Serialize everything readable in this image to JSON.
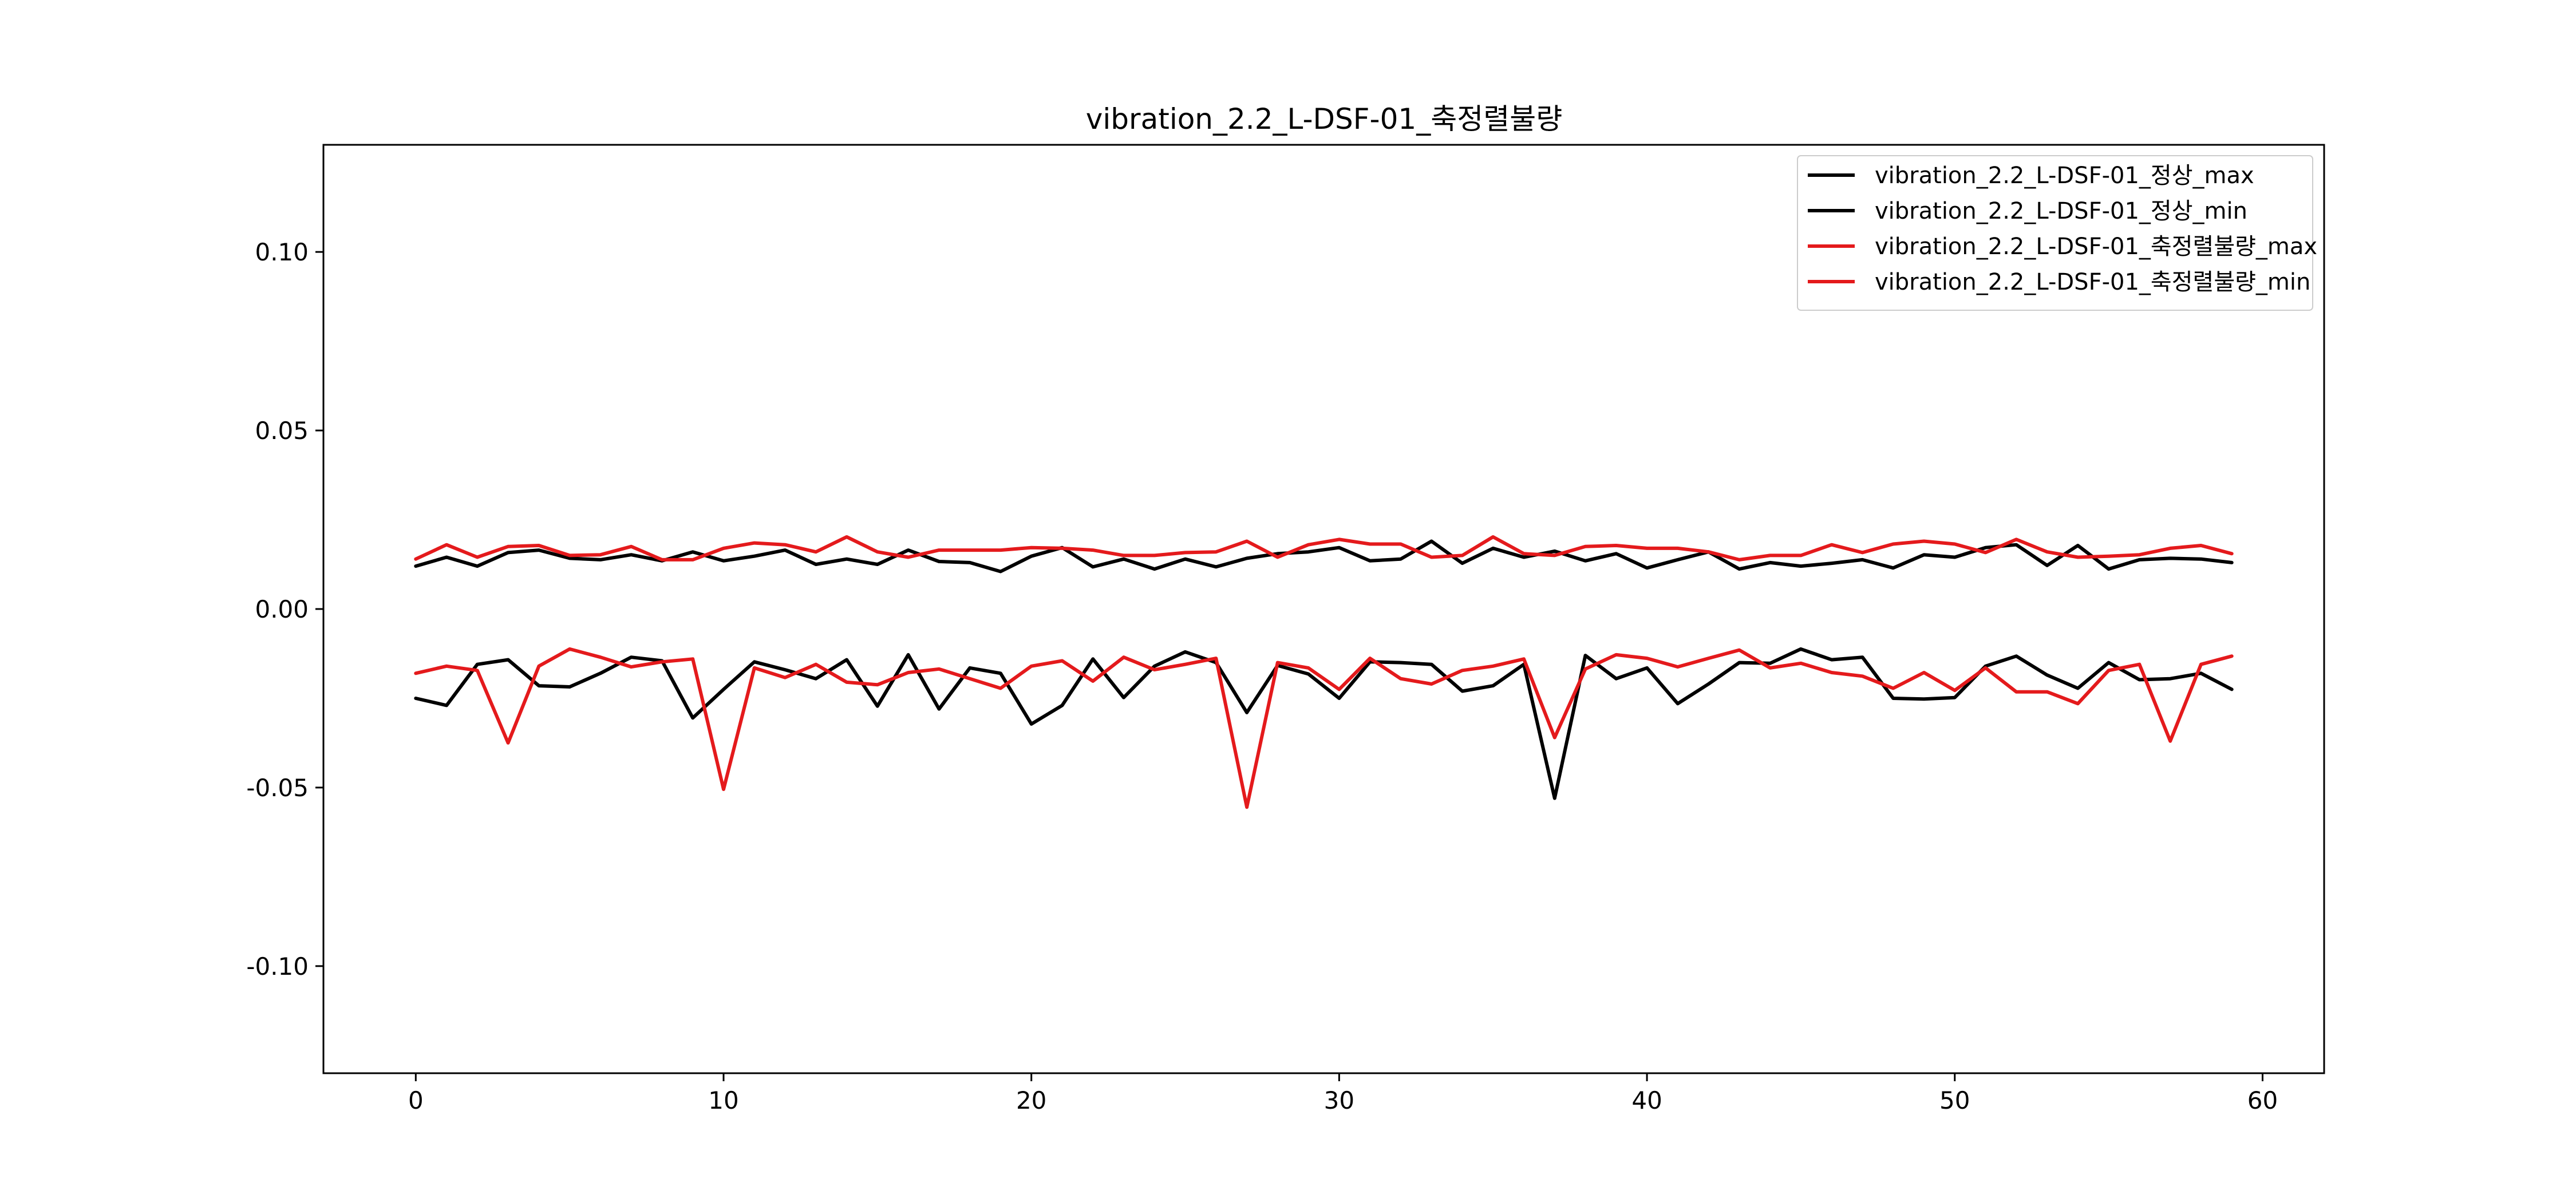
{
  "chart_data": {
    "type": "line",
    "title": "vibration_2.2_L-DSF-01_축정렬불량",
    "xlabel": "",
    "ylabel": "",
    "xlim": [
      -3,
      62
    ],
    "ylim": [
      -0.13,
      0.13
    ],
    "xticks": [
      0,
      10,
      20,
      30,
      40,
      50,
      60
    ],
    "xtick_labels": [
      "0",
      "10",
      "20",
      "30",
      "40",
      "50",
      "60"
    ],
    "yticks": [
      -0.1,
      -0.05,
      0.0,
      0.05,
      0.1
    ],
    "ytick_labels": [
      "-0.10",
      "-0.05",
      "0.00",
      "0.05",
      "0.10"
    ],
    "legend_position": "top-right",
    "x": [
      0,
      1,
      2,
      3,
      4,
      5,
      6,
      7,
      8,
      9,
      10,
      11,
      12,
      13,
      14,
      15,
      16,
      17,
      18,
      19,
      20,
      21,
      22,
      23,
      24,
      25,
      26,
      27,
      28,
      29,
      30,
      31,
      32,
      33,
      34,
      35,
      36,
      37,
      38,
      39,
      40,
      41,
      42,
      43,
      44,
      45,
      46,
      47,
      48,
      49,
      50,
      51,
      52,
      53,
      54,
      55,
      56,
      57,
      58,
      59
    ],
    "series": [
      {
        "name": "vibration_2.2_L-DSF-01_정상_max",
        "color": "#000000",
        "values": [
          0.012,
          0.0145,
          0.012,
          0.0158,
          0.0165,
          0.0142,
          0.0138,
          0.0152,
          0.0135,
          0.016,
          0.0135,
          0.0148,
          0.0165,
          0.0125,
          0.014,
          0.0125,
          0.0165,
          0.0133,
          0.013,
          0.0105,
          0.0148,
          0.0172,
          0.0118,
          0.014,
          0.0112,
          0.014,
          0.0118,
          0.0142,
          0.0155,
          0.016,
          0.0172,
          0.0135,
          0.014,
          0.019,
          0.0128,
          0.017,
          0.0145,
          0.0162,
          0.0135,
          0.0155,
          0.0115,
          0.0138,
          0.016,
          0.0112,
          0.013,
          0.012,
          0.0128,
          0.0138,
          0.0115,
          0.0152,
          0.0145,
          0.0172,
          0.018,
          0.0122,
          0.0178,
          0.0112,
          0.0138,
          0.0142,
          0.014,
          0.013
        ]
      },
      {
        "name": "vibration_2.2_L-DSF-01_정상_min",
        "color": "#000000",
        "values": [
          -0.025,
          -0.027,
          -0.0155,
          -0.0142,
          -0.0215,
          -0.0218,
          -0.018,
          -0.0135,
          -0.0145,
          -0.0305,
          -0.0225,
          -0.0148,
          -0.017,
          -0.0195,
          -0.0142,
          -0.0272,
          -0.0128,
          -0.028,
          -0.0165,
          -0.018,
          -0.0322,
          -0.027,
          -0.014,
          -0.0248,
          -0.016,
          -0.012,
          -0.015,
          -0.029,
          -0.0158,
          -0.0182,
          -0.025,
          -0.0148,
          -0.015,
          -0.0155,
          -0.023,
          -0.0215,
          -0.0155,
          -0.053,
          -0.013,
          -0.0195,
          -0.0165,
          -0.0265,
          -0.021,
          -0.015,
          -0.0152,
          -0.0112,
          -0.0142,
          -0.0135,
          -0.025,
          -0.0252,
          -0.0248,
          -0.016,
          -0.0132,
          -0.0185,
          -0.0222,
          -0.015,
          -0.0198,
          -0.0195,
          -0.018,
          -0.0225
        ]
      },
      {
        "name": "vibration_2.2_L-DSF-01_축정렬불량_max",
        "color": "#e41a1c",
        "values": [
          0.014,
          0.018,
          0.0145,
          0.0175,
          0.0178,
          0.015,
          0.0152,
          0.0175,
          0.0138,
          0.0138,
          0.017,
          0.0185,
          0.018,
          0.016,
          0.0202,
          0.016,
          0.0145,
          0.0165,
          0.0165,
          0.0165,
          0.0172,
          0.017,
          0.0165,
          0.015,
          0.015,
          0.0158,
          0.016,
          0.019,
          0.0145,
          0.018,
          0.0195,
          0.0182,
          0.0182,
          0.0145,
          0.015,
          0.0202,
          0.0155,
          0.015,
          0.0175,
          0.0178,
          0.017,
          0.017,
          0.016,
          0.0138,
          0.015,
          0.015,
          0.018,
          0.0158,
          0.0182,
          0.019,
          0.0182,
          0.0158,
          0.0195,
          0.016,
          0.0145,
          0.0148,
          0.0152,
          0.017,
          0.0178,
          0.0155
        ]
      },
      {
        "name": "vibration_2.2_L-DSF-01_축정렬불량_min",
        "color": "#e41a1c",
        "values": [
          -0.018,
          -0.016,
          -0.0172,
          -0.0375,
          -0.016,
          -0.0112,
          -0.0135,
          -0.0162,
          -0.0148,
          -0.014,
          -0.0505,
          -0.0165,
          -0.0192,
          -0.0155,
          -0.0205,
          -0.0212,
          -0.0178,
          -0.0168,
          -0.0195,
          -0.0222,
          -0.016,
          -0.0145,
          -0.0202,
          -0.0135,
          -0.017,
          -0.0155,
          -0.0138,
          -0.0555,
          -0.015,
          -0.0165,
          -0.0225,
          -0.0138,
          -0.0195,
          -0.021,
          -0.0172,
          -0.016,
          -0.014,
          -0.036,
          -0.0168,
          -0.0128,
          -0.0138,
          -0.0162,
          -0.0138,
          -0.0115,
          -0.0165,
          -0.0152,
          -0.0178,
          -0.0188,
          -0.0222,
          -0.0178,
          -0.0228,
          -0.0165,
          -0.0232,
          -0.0232,
          -0.0265,
          -0.0172,
          -0.0155,
          -0.037,
          -0.0155,
          -0.0132
        ]
      }
    ]
  }
}
